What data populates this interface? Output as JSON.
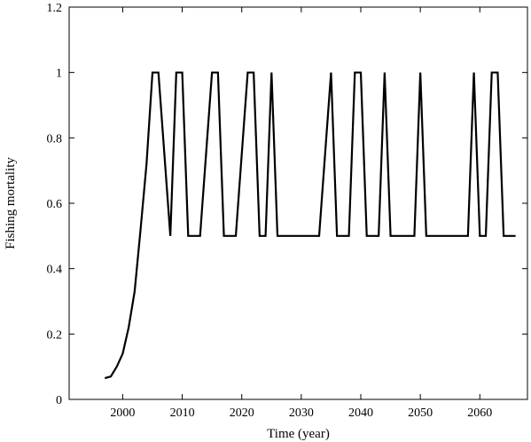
{
  "chart_data": {
    "type": "line",
    "title": "",
    "xlabel": "Time (year)",
    "ylabel": "Fishing mortality",
    "xlim": [
      1991,
      2068
    ],
    "ylim": [
      0,
      1.2
    ],
    "xticks": [
      2000,
      2010,
      2020,
      2030,
      2040,
      2050,
      2060
    ],
    "yticks": [
      0,
      0.2,
      0.4,
      0.6,
      0.8,
      1,
      1.2
    ],
    "ytick_labels": [
      "0",
      "0.2",
      "0.4",
      "0.6",
      "0.8",
      "1",
      "1.2"
    ],
    "grid": false,
    "legend": "none",
    "line_color": "#000000",
    "series": [
      {
        "x": [
          1997,
          1998,
          1999,
          2000,
          2001,
          2002,
          2003,
          2004,
          2005,
          2006,
          2007,
          2008,
          2009,
          2010,
          2011,
          2012,
          2013,
          2014,
          2015,
          2016,
          2017,
          2018,
          2019,
          2020,
          2021,
          2022,
          2023,
          2024,
          2025,
          2026,
          2027,
          2028,
          2029,
          2030,
          2031,
          2032,
          2033,
          2034,
          2035,
          2036,
          2037,
          2038,
          2039,
          2040,
          2041,
          2042,
          2043,
          2044,
          2045,
          2046,
          2047,
          2048,
          2049,
          2050,
          2051,
          2052,
          2053,
          2054,
          2055,
          2056,
          2057,
          2058,
          2059,
          2060,
          2061,
          2062,
          2063,
          2064,
          2065,
          2066
        ],
        "y": [
          0.065,
          0.07,
          0.1,
          0.14,
          0.22,
          0.33,
          0.52,
          0.72,
          1.0,
          1.0,
          0.75,
          0.5,
          1.0,
          1.0,
          0.5,
          0.5,
          0.5,
          0.75,
          1.0,
          1.0,
          0.5,
          0.5,
          0.5,
          0.75,
          1.0,
          1.0,
          0.5,
          0.5,
          1.0,
          0.5,
          0.5,
          0.5,
          0.5,
          0.5,
          0.5,
          0.5,
          0.5,
          0.75,
          1.0,
          0.5,
          0.5,
          0.5,
          1.0,
          1.0,
          0.5,
          0.5,
          0.5,
          1.0,
          0.5,
          0.5,
          0.5,
          0.5,
          0.5,
          1.0,
          0.5,
          0.5,
          0.5,
          0.5,
          0.5,
          0.5,
          0.5,
          0.5,
          1.0,
          0.5,
          0.5,
          1.0,
          1.0,
          0.5,
          0.5,
          0.5
        ]
      }
    ]
  }
}
